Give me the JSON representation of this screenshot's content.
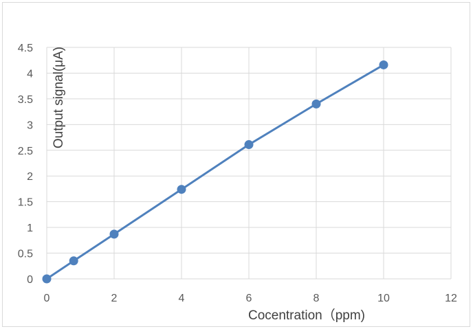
{
  "chart_data": {
    "type": "scatter",
    "title": "",
    "xlabel": "Cocentration（ppm)",
    "ylabel": "Output signal(μA)",
    "xlim": [
      0,
      12
    ],
    "ylim": [
      0,
      4.5
    ],
    "x_ticks": [
      "0",
      "2",
      "4",
      "6",
      "8",
      "10",
      "12"
    ],
    "y_ticks": [
      "0",
      "0.5",
      "1",
      "1.5",
      "2",
      "2.5",
      "3",
      "3.5",
      "4",
      "4.5"
    ],
    "grid": true,
    "legend": "none",
    "series": [
      {
        "x": [
          0,
          0.8,
          2,
          4,
          6,
          8,
          10
        ],
        "y": [
          0,
          0.35,
          0.87,
          1.74,
          2.61,
          3.4,
          4.16
        ],
        "color": "#4f81bd",
        "line": true,
        "markers": true
      }
    ]
  }
}
